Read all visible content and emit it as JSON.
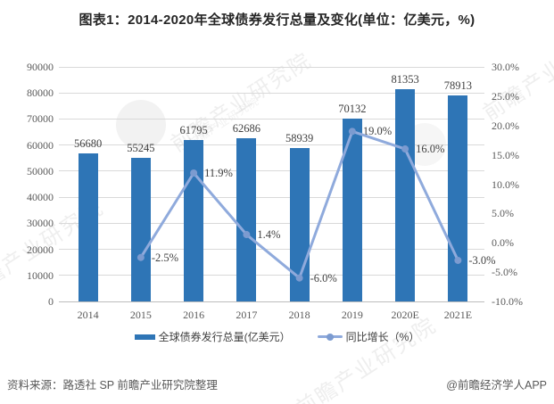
{
  "title": "图表1：2014-2020年全球债券发行总量及变化(单位：亿美元，%)",
  "chart_data": {
    "type": "bar",
    "categories": [
      "2014",
      "2015",
      "2016",
      "2017",
      "2018",
      "2019",
      "2020E",
      "2021E"
    ],
    "series": [
      {
        "name": "全球债券发行总量(亿美元）",
        "type": "bar",
        "axis": "left",
        "color": "#2E75B6",
        "values": [
          56680,
          55245,
          61795,
          62686,
          58939,
          70132,
          81353,
          78913
        ],
        "value_labels": [
          "56680",
          "55245",
          "61795",
          "62686",
          "58939",
          "70132",
          "81353",
          "78913"
        ]
      },
      {
        "name": "同比增长（%）",
        "type": "line",
        "axis": "right",
        "color": "#8FAADC",
        "marker_color": "#7C9BD0",
        "values": [
          null,
          -2.5,
          11.9,
          1.4,
          -6.0,
          19.0,
          16.0,
          -3.0
        ],
        "value_labels": [
          "",
          "-2.5%",
          "11.9%",
          "1.4%",
          "-6.0%",
          "19.0%",
          "16.0%",
          "-3.0%"
        ]
      }
    ],
    "left_axis": {
      "min": 0,
      "max": 90000,
      "step": 10000,
      "tick_labels": [
        "0",
        "10000",
        "20000",
        "30000",
        "40000",
        "50000",
        "60000",
        "70000",
        "80000",
        "90000"
      ]
    },
    "right_axis": {
      "min": -10,
      "max": 30,
      "step": 5,
      "tick_labels": [
        "-10.0%",
        "-5.0%",
        "0.0%",
        "5.0%",
        "10.0%",
        "15.0%",
        "20.0%",
        "25.0%",
        "30.0%"
      ]
    },
    "grid": true,
    "legend_position": "bottom",
    "title": "图表1：2014-2020年全球债券发行总量及变化(单位：亿美元，%)",
    "xlabel": "",
    "ylabel": ""
  },
  "legend": {
    "items": [
      {
        "label": "全球债券发行总量(亿美元）",
        "swatch": "bar",
        "color": "#2E75B6"
      },
      {
        "label": "同比增长（%）",
        "swatch": "line",
        "color": "#8FAADC"
      }
    ]
  },
  "footer": {
    "source": "资料来源：路透社 SP 前瞻产业研究院整理",
    "brand": "@前瞻经济学人APP"
  },
  "watermark": {
    "text": "前瞻产业研究院"
  }
}
